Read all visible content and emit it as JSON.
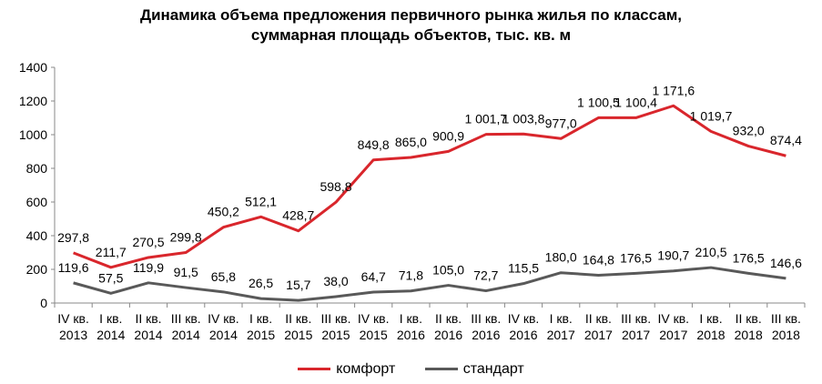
{
  "chart_data": {
    "type": "line",
    "title_line1": "Динамика объема предложения первичного рынка жилья по классам,",
    "title_line2": "суммарная площадь объектов, тыс. кв. м",
    "categories": [
      [
        "IV кв.",
        "2013"
      ],
      [
        "I кв.",
        "2014"
      ],
      [
        "II кв.",
        "2014"
      ],
      [
        "III кв.",
        "2014"
      ],
      [
        "IV кв.",
        "2014"
      ],
      [
        "I кв.",
        "2015"
      ],
      [
        "II кв.",
        "2015"
      ],
      [
        "III кв.",
        "2015"
      ],
      [
        "IV кв.",
        "2015"
      ],
      [
        "I кв.",
        "2016"
      ],
      [
        "II кв.",
        "2016"
      ],
      [
        "III кв.",
        "2016"
      ],
      [
        "IV кв.",
        "2016"
      ],
      [
        "I кв.",
        "2017"
      ],
      [
        "II кв.",
        "2017"
      ],
      [
        "III кв.",
        "2017"
      ],
      [
        "IV кв.",
        "2017"
      ],
      [
        "I кв.",
        "2018"
      ],
      [
        "II кв.",
        "2018"
      ],
      [
        "III кв.",
        "2018"
      ]
    ],
    "series": [
      {
        "name": "комфорт",
        "color": "#d9262c",
        "values": [
          297.8,
          211.7,
          270.5,
          299.8,
          450.2,
          512.1,
          428.7,
          598.8,
          849.8,
          865.0,
          900.9,
          1001.7,
          1003.8,
          977.0,
          1100.5,
          1100.4,
          1171.6,
          1019.7,
          932.0,
          874.4
        ],
        "labels": [
          "297,8",
          "211,7",
          "270,5",
          "299,8",
          "450,2",
          "512,1",
          "428,7",
          "598,8",
          "849,8",
          "865,0",
          "900,9",
          "1 001,7",
          "1 003,8",
          "977,0",
          "1 100,5",
          "1 100,4",
          "1 171,6",
          "1 019,7",
          "932,0",
          "874,4"
        ]
      },
      {
        "name": "стандарт",
        "color": "#595959",
        "values": [
          119.6,
          57.5,
          119.9,
          91.5,
          65.8,
          26.5,
          15.7,
          38.0,
          64.7,
          71.8,
          105.0,
          72.7,
          115.5,
          180.0,
          164.8,
          176.5,
          190.7,
          210.5,
          176.5,
          146.6
        ],
        "labels": [
          "119,6",
          "57,5",
          "119,9",
          "91,5",
          "65,8",
          "26,5",
          "15,7",
          "38,0",
          "64,7",
          "71,8",
          "105,0",
          "72,7",
          "115,5",
          "180,0",
          "164,8",
          "176,5",
          "190,7",
          "210,5",
          "176,5",
          "146,6"
        ]
      }
    ],
    "yticks": [
      "0",
      "200",
      "400",
      "600",
      "800",
      "1000",
      "1200",
      "1400"
    ],
    "ylim": [
      0,
      1400
    ],
    "grid": false,
    "legend": "bottom"
  }
}
